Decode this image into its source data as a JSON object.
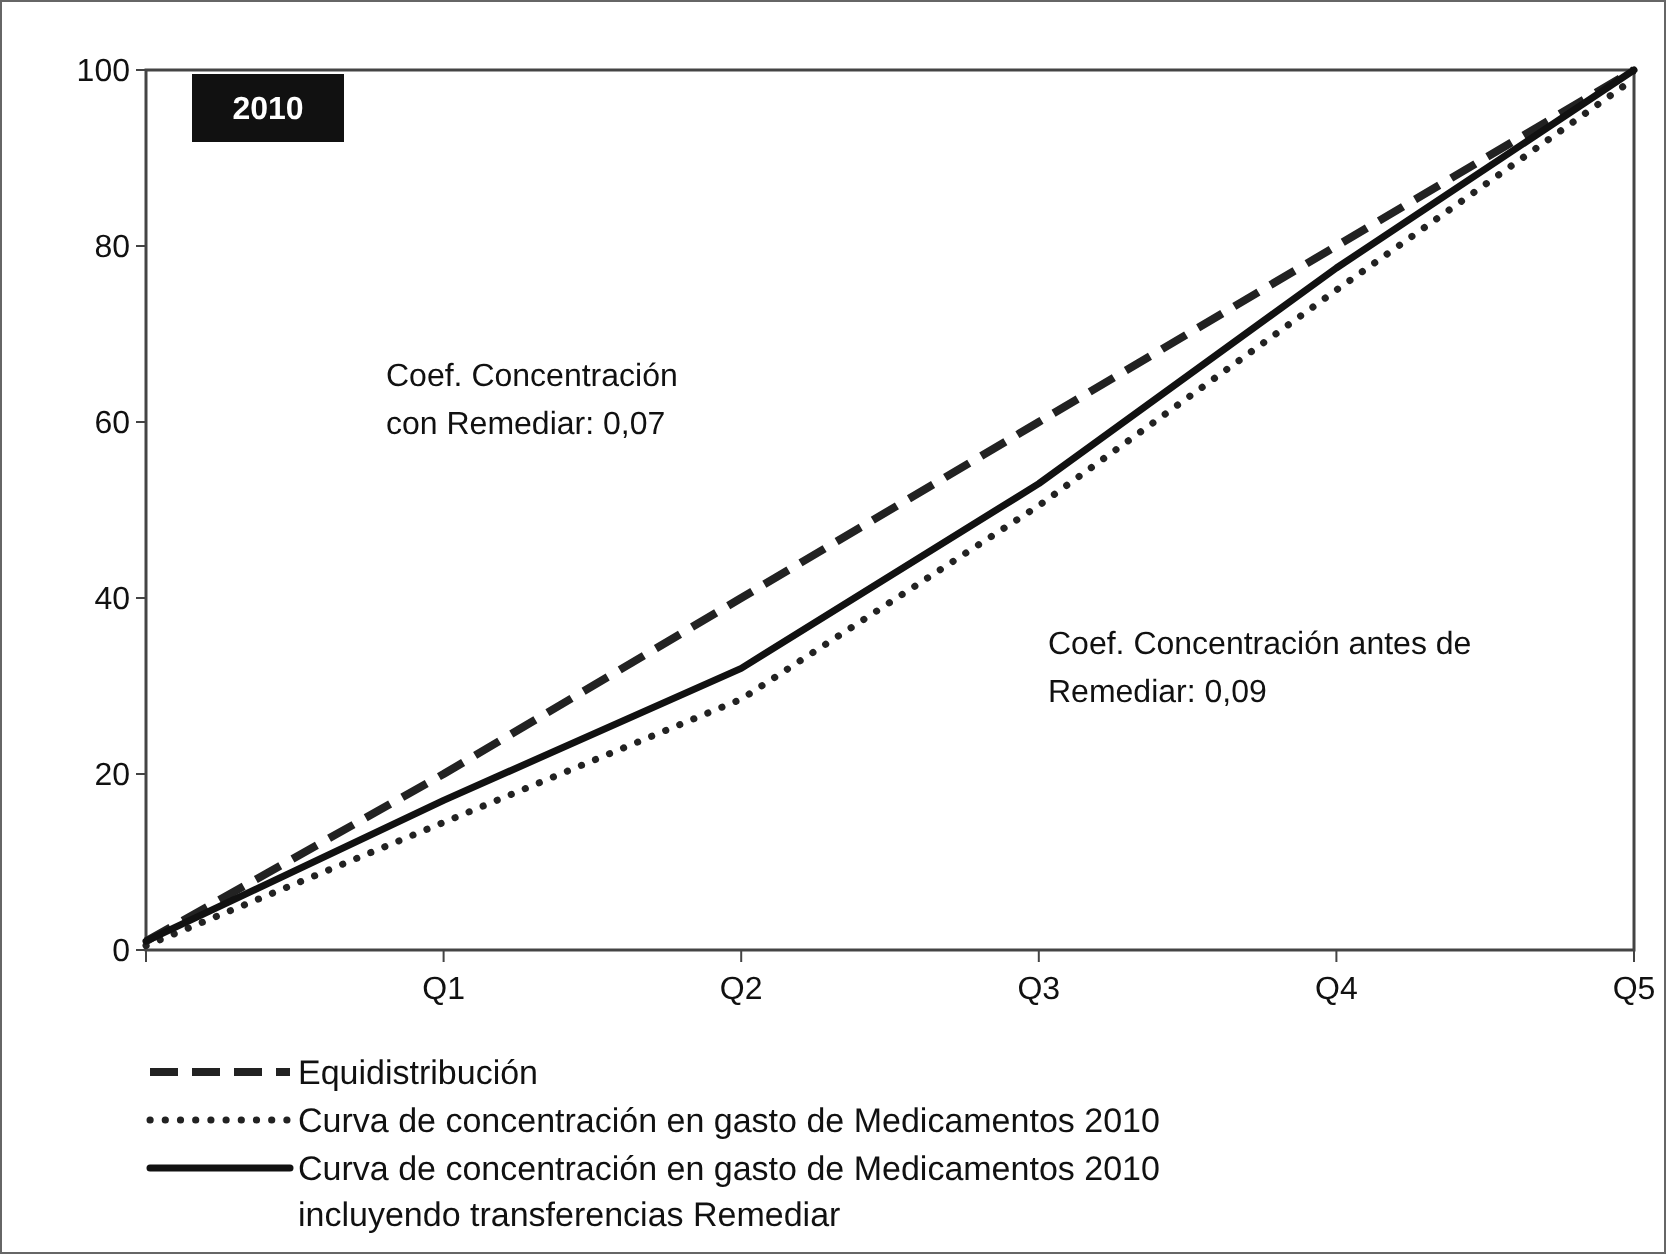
{
  "chart_data": {
    "type": "line",
    "title": "2010",
    "categories": [
      null,
      "Q1",
      "Q2",
      "Q3",
      "Q4",
      "Q5"
    ],
    "ylim": [
      0,
      100
    ],
    "yticks": [
      0,
      20,
      40,
      60,
      80,
      100
    ],
    "grid": false,
    "legend": "bottom",
    "marker": "none",
    "annotations": [
      "Coef. Concentración con Remediar: 0,07",
      "Coef. Concentración antes de Remediar: 0,09"
    ],
    "series": [
      {
        "name": "Equidistribución",
        "color": "#222222",
        "line_style": "dashed",
        "values": [
          1,
          20,
          40,
          60,
          80,
          100
        ]
      },
      {
        "name": "Curva de concentración en gasto de Medicamentos 2010",
        "color": "#222222",
        "line_style": "dotted",
        "values": [
          0.5,
          14.5,
          28.5,
          50.5,
          75,
          99
        ]
      },
      {
        "name": "Curva de concentración en gasto de Medicamentos 2010 incluyendo transferencias Remediar",
        "color": "#111111",
        "line_style": "solid",
        "values": [
          1,
          17,
          32,
          53,
          77.5,
          100
        ]
      }
    ]
  }
}
